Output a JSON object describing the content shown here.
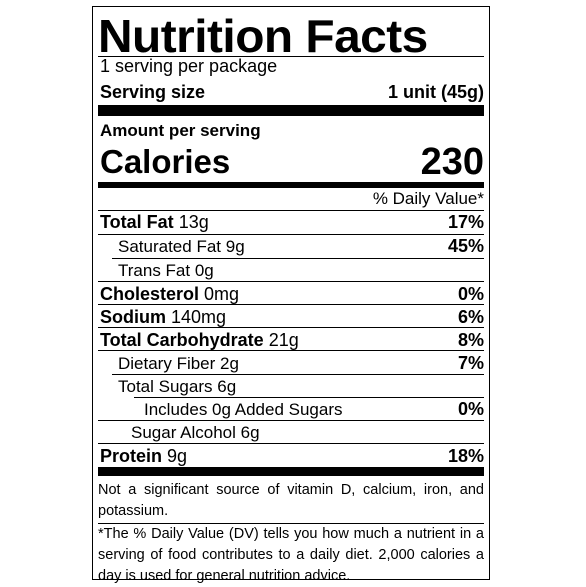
{
  "title": "Nutrition Facts",
  "servings": "1 serving per package",
  "serving_size": {
    "label": "Serving size",
    "value": "1 unit (45g)"
  },
  "amount_per_serving": "Amount per serving",
  "calories": {
    "label": "Calories",
    "value": "230"
  },
  "daily_value_header": "% Daily Value*",
  "nutrients": {
    "total_fat": {
      "label": "Total Fat",
      "amount": "13g",
      "dv": "17%"
    },
    "saturated_fat": {
      "label": "Saturated Fat",
      "amount": "9g",
      "dv": "45%"
    },
    "trans_fat": {
      "label": "Trans Fat",
      "amount": "0g"
    },
    "cholesterol": {
      "label": "Cholesterol",
      "amount": "0mg",
      "dv": "0%"
    },
    "sodium": {
      "label": "Sodium",
      "amount": "140mg",
      "dv": "6%"
    },
    "total_carbohydrate": {
      "label": "Total Carbohydrate",
      "amount": "21g",
      "dv": "8%"
    },
    "dietary_fiber": {
      "label": "Dietary Fiber",
      "amount": "2g",
      "dv": "7%"
    },
    "total_sugars": {
      "label": "Total Sugars",
      "amount": "6g"
    },
    "added_sugars": {
      "label": "Includes 0g Added Sugars",
      "dv": "0%"
    },
    "sugar_alcohol": {
      "label": "Sugar Alcohol",
      "amount": "6g"
    },
    "protein": {
      "label": "Protein",
      "amount": "9g",
      "dv": "18%"
    }
  },
  "footnote_1": "Not a significant source of vitamin D, calcium, iron, and potassium.",
  "footnote_2": "*The % Daily Value (DV) tells you how much a nutrient in a serving of food contributes to a daily diet. 2,000 calories a day is used for general nutrition advice."
}
